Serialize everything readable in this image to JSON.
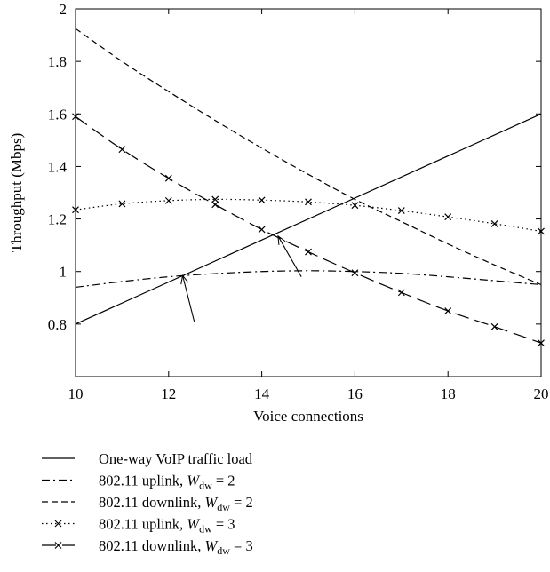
{
  "chart_data": {
    "type": "line",
    "xlabel": "Voice connections",
    "ylabel": "Throughput (Mbps)",
    "xlim": [
      10,
      20
    ],
    "ylim": [
      0.6,
      2.0
    ],
    "x_ticks": [
      10,
      12,
      14,
      16,
      18,
      20
    ],
    "y_ticks": [
      0.8,
      1,
      1.2,
      1.4,
      1.6,
      1.8,
      2
    ],
    "y_tick_labels": [
      "0.8",
      "1",
      "1.2",
      "1.4",
      "1.6",
      "1.8",
      "2"
    ],
    "grid": false,
    "legend_position": "bottom",
    "series": [
      {
        "name": "One-way VoIP traffic load",
        "line_style": "solid",
        "marker": "none",
        "x": [
          10,
          20
        ],
        "y": [
          0.8,
          1.6
        ]
      },
      {
        "name": "802.11 uplink, ",
        "legend_sub": "dw",
        "legend_value": " = 2",
        "line_style": "dashdot",
        "marker": "none",
        "x": [
          10,
          11,
          12,
          13,
          14,
          15,
          16,
          17,
          18,
          19,
          20
        ],
        "y": [
          0.94,
          0.962,
          0.98,
          0.992,
          1.0,
          1.003,
          1.0,
          0.993,
          0.98,
          0.965,
          0.95
        ]
      },
      {
        "name": "802.11 downlink, ",
        "legend_sub": "dw",
        "legend_value": " = 2",
        "line_style": "dashed",
        "marker": "none",
        "x": [
          10,
          11,
          12,
          13,
          14,
          15,
          16,
          17,
          18,
          19,
          20
        ],
        "y": [
          1.925,
          1.8,
          1.685,
          1.575,
          1.47,
          1.37,
          1.275,
          1.19,
          1.105,
          1.025,
          0.95
        ]
      },
      {
        "name": "802.11 uplink, ",
        "legend_sub": "dw",
        "legend_value": " = 3",
        "line_style": "dotted",
        "marker": "x",
        "x": [
          10,
          11,
          12,
          13,
          14,
          15,
          16,
          17,
          18,
          19,
          20
        ],
        "y": [
          1.235,
          1.258,
          1.27,
          1.275,
          1.272,
          1.265,
          1.252,
          1.232,
          1.208,
          1.182,
          1.153
        ]
      },
      {
        "name": "802.11 downlink, ",
        "legend_sub": "dw",
        "legend_value": " = 3",
        "line_style": "longdash",
        "marker": "x",
        "x": [
          10,
          11,
          12,
          13,
          14,
          15,
          16,
          17,
          18,
          19,
          20
        ],
        "y": [
          1.59,
          1.465,
          1.355,
          1.255,
          1.16,
          1.075,
          0.995,
          0.92,
          0.85,
          0.79,
          0.728
        ]
      }
    ],
    "annotations": [
      {
        "type": "arrow",
        "from": [
          12.55,
          0.81
        ],
        "to": [
          12.3,
          0.985
        ]
      },
      {
        "type": "arrow",
        "from": [
          14.85,
          0.98
        ],
        "to": [
          14.35,
          1.135
        ]
      }
    ]
  },
  "legend_symbol": "W"
}
